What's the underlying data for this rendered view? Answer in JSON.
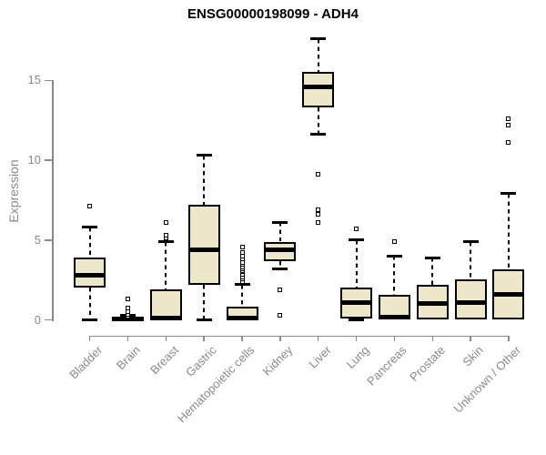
{
  "window": {
    "title": "ENSG00000198099 - ADH4"
  },
  "chart_data": {
    "type": "boxplot",
    "title": "ENSG00000198099 - ADH4",
    "xlabel": "",
    "ylabel": "Expression",
    "y_ticks": [
      0,
      5,
      10,
      15
    ],
    "ylim": [
      0,
      17.6
    ],
    "grid": false,
    "legend": "none",
    "categories": [
      "Bladder",
      "Brain",
      "Breast",
      "Gastric",
      "Hematopoietic cells",
      "Kidney",
      "Liver",
      "Lung",
      "Pancreas",
      "Prostate",
      "Skin",
      "Unknown / Other"
    ],
    "series": [
      {
        "name": "Bladder",
        "whisker_low": 0,
        "q1": 2.0,
        "median": 2.8,
        "q3": 3.9,
        "whisker_high": 5.8,
        "outliers": [
          7.1
        ]
      },
      {
        "name": "Brain",
        "whisker_low": 0,
        "q1": 0,
        "median": 0.05,
        "q3": 0.15,
        "whisker_high": 0.3,
        "outliers": [
          0.2,
          0.35,
          0.5,
          0.75,
          1.3
        ]
      },
      {
        "name": "Breast",
        "whisker_low": 0,
        "q1": 0,
        "median": 0.1,
        "q3": 1.9,
        "whisker_high": 4.9,
        "outliers": [
          5.1,
          5.3,
          6.1
        ]
      },
      {
        "name": "Gastric",
        "whisker_low": 0,
        "q1": 2.2,
        "median": 4.4,
        "q3": 7.2,
        "whisker_high": 10.3,
        "outliers": []
      },
      {
        "name": "Hematopoietic cells",
        "whisker_low": 0,
        "q1": 0,
        "median": 0.1,
        "q3": 0.8,
        "whisker_high": 2.2,
        "outliers": [
          2.4,
          2.55,
          2.7,
          2.85,
          3.0,
          3.1,
          3.2,
          3.3,
          3.45,
          3.6,
          3.8,
          4.0,
          4.2,
          4.55
        ]
      },
      {
        "name": "Kidney",
        "whisker_low": 3.2,
        "q1": 3.7,
        "median": 4.4,
        "q3": 4.9,
        "whisker_high": 6.1,
        "outliers": [
          1.9,
          0.3
        ]
      },
      {
        "name": "Liver",
        "whisker_low": 11.6,
        "q1": 13.3,
        "median": 14.6,
        "q3": 15.5,
        "whisker_high": 17.6,
        "outliers": [
          9.1,
          6.9,
          6.6,
          6.1
        ]
      },
      {
        "name": "Lung",
        "whisker_low": 0,
        "q1": 0.1,
        "median": 1.1,
        "q3": 2.0,
        "whisker_high": 5.0,
        "outliers": [
          5.7
        ]
      },
      {
        "name": "Pancreas",
        "whisker_low": 0,
        "q1": 0,
        "median": 0.15,
        "q3": 1.55,
        "whisker_high": 4.0,
        "outliers": [
          4.9
        ]
      },
      {
        "name": "Prostate",
        "whisker_low": 0,
        "q1": 0,
        "median": 1.0,
        "q3": 2.2,
        "whisker_high": 3.9,
        "outliers": []
      },
      {
        "name": "Skin",
        "whisker_low": 0,
        "q1": 0,
        "median": 1.1,
        "q3": 2.55,
        "whisker_high": 4.9,
        "outliers": []
      },
      {
        "name": "Unknown / Other",
        "whisker_low": 0,
        "q1": 0,
        "median": 1.6,
        "q3": 3.15,
        "whisker_high": 7.9,
        "outliers": [
          11.1,
          12.2,
          12.6
        ]
      }
    ],
    "colors": {
      "box_fill": "#EDE7CC",
      "box_border": "#000000",
      "median": "#000000",
      "axis": "#8a8a8a",
      "title": "#000000",
      "background": "#ffffff"
    }
  }
}
